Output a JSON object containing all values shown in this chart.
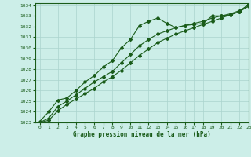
{
  "title": "Graphe pression niveau de la mer (hPa)",
  "bg_color": "#cceee8",
  "grid_color": "#aad4ce",
  "line_color": "#1a5c1a",
  "xlim": [
    -0.5,
    23
  ],
  "ylim": [
    1023,
    1034.2
  ],
  "xticks": [
    0,
    1,
    2,
    3,
    4,
    5,
    6,
    7,
    8,
    9,
    10,
    11,
    12,
    13,
    14,
    15,
    16,
    17,
    18,
    19,
    20,
    21,
    22,
    23
  ],
  "yticks": [
    1023,
    1024,
    1025,
    1026,
    1027,
    1028,
    1029,
    1030,
    1031,
    1032,
    1033,
    1034
  ],
  "line1_x": [
    0,
    1,
    2,
    3,
    4,
    5,
    6,
    7,
    8,
    9,
    10,
    11,
    12,
    13,
    14,
    15,
    16,
    17,
    18,
    19,
    20,
    21,
    22,
    23
  ],
  "line1_y": [
    1023.1,
    1024.0,
    1025.1,
    1025.3,
    1026.0,
    1026.8,
    1027.4,
    1028.2,
    1028.8,
    1030.0,
    1030.8,
    1032.1,
    1032.5,
    1032.8,
    1032.3,
    1031.9,
    1032.1,
    1032.2,
    1032.3,
    1033.0,
    1033.0,
    1033.1,
    1033.4,
    1034.1
  ],
  "line2_x": [
    0,
    1,
    2,
    3,
    4,
    5,
    6,
    7,
    8,
    9,
    10,
    11,
    12,
    13,
    14,
    15,
    16,
    17,
    18,
    19,
    20,
    21,
    22,
    23
  ],
  "line2_y": [
    1023.0,
    1023.4,
    1024.5,
    1025.0,
    1025.6,
    1026.2,
    1026.8,
    1027.3,
    1027.8,
    1028.6,
    1029.4,
    1030.2,
    1030.8,
    1031.3,
    1031.6,
    1031.9,
    1032.1,
    1032.3,
    1032.5,
    1032.8,
    1033.0,
    1033.2,
    1033.5,
    1034.0
  ],
  "line3_x": [
    0,
    1,
    2,
    3,
    4,
    5,
    6,
    7,
    8,
    9,
    10,
    11,
    12,
    13,
    14,
    15,
    16,
    17,
    18,
    19,
    20,
    21,
    22,
    23
  ],
  "line3_y": [
    1023.0,
    1023.2,
    1024.1,
    1024.7,
    1025.2,
    1025.7,
    1026.2,
    1026.8,
    1027.3,
    1027.9,
    1028.6,
    1029.3,
    1029.9,
    1030.5,
    1030.9,
    1031.3,
    1031.6,
    1031.9,
    1032.2,
    1032.5,
    1032.8,
    1033.1,
    1033.4,
    1033.9
  ]
}
